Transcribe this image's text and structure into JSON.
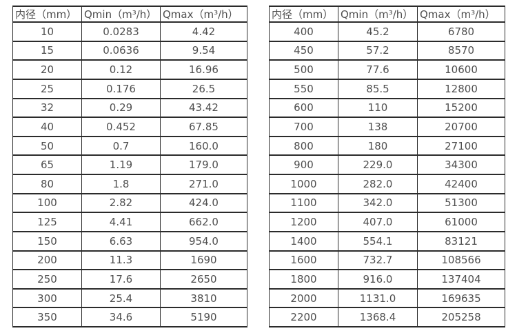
{
  "page": {
    "background": "#ffffff",
    "text_color": "#4f4f4f",
    "border_color": "#2b2b2b"
  },
  "tables": [
    {
      "name": "flow-spec-table-left",
      "headers": [
        "内径（mm）",
        "Qmin（m³/h）",
        "Qmax（m³/h）"
      ],
      "rows": [
        [
          "10",
          "0.0283",
          "4.42"
        ],
        [
          "15",
          "0.0636",
          "9.54"
        ],
        [
          "20",
          "0.12",
          "16.96"
        ],
        [
          "25",
          "0.176",
          "26.5"
        ],
        [
          "32",
          "0.29",
          "43.42"
        ],
        [
          "40",
          "0.452",
          "67.85"
        ],
        [
          "50",
          "0.7",
          "160.0"
        ],
        [
          "65",
          "1.19",
          "179.0"
        ],
        [
          "80",
          "1.8",
          "271.0"
        ],
        [
          "100",
          "2.82",
          "424.0"
        ],
        [
          "125",
          "4.41",
          "662.0"
        ],
        [
          "150",
          "6.63",
          "954.0"
        ],
        [
          "200",
          "11.3",
          "1690"
        ],
        [
          "250",
          "17.6",
          "2650"
        ],
        [
          "300",
          "25.4",
          "3810"
        ],
        [
          "350",
          "34.6",
          "5190"
        ]
      ]
    },
    {
      "name": "flow-spec-table-right",
      "headers": [
        "内径（mm）",
        "Qmin（m³/h）",
        "Qmax（m³/h）"
      ],
      "rows": [
        [
          "400",
          "45.2",
          "6780"
        ],
        [
          "450",
          "57.2",
          "8570"
        ],
        [
          "500",
          "77.6",
          "10600"
        ],
        [
          "550",
          "85.5",
          "12800"
        ],
        [
          "600",
          "110",
          "15200"
        ],
        [
          "700",
          "138",
          "20700"
        ],
        [
          "800",
          "180",
          "27100"
        ],
        [
          "900",
          "229.0",
          "34300"
        ],
        [
          "1000",
          "282.0",
          "42400"
        ],
        [
          "1100",
          "342.0",
          "51300"
        ],
        [
          "1200",
          "407.0",
          "61000"
        ],
        [
          "1400",
          "554.1",
          "83121"
        ],
        [
          "1600",
          "732.7",
          "108566"
        ],
        [
          "1800",
          "916.0",
          "137404"
        ],
        [
          "2000",
          "1131.0",
          "169635"
        ],
        [
          "2200",
          "1368.4",
          "205258"
        ]
      ]
    }
  ]
}
